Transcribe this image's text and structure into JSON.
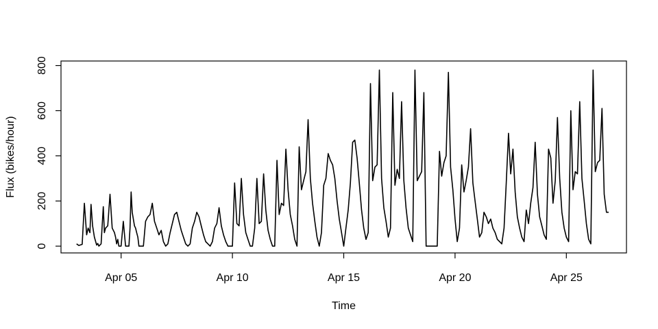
{
  "chart_data": {
    "type": "line",
    "xlabel": "Time",
    "ylabel": "Flux (bikes/hour)",
    "xlim": [
      2.3,
      27.7
    ],
    "ylim": [
      -30,
      820
    ],
    "x_ticks": [
      {
        "value": 5,
        "label": "Apr 05"
      },
      {
        "value": 10,
        "label": "Apr 10"
      },
      {
        "value": 15,
        "label": "Apr 15"
      },
      {
        "value": 20,
        "label": "Apr 20"
      },
      {
        "value": 25,
        "label": "Apr 25"
      }
    ],
    "y_ticks": [
      0,
      200,
      400,
      600,
      800
    ],
    "line_color": "#000000",
    "series": [
      {
        "x": [
          3.0,
          3.1,
          3.25,
          3.35,
          3.45,
          3.52,
          3.6,
          3.65,
          3.72,
          3.8,
          3.9,
          3.95,
          4.0,
          4.1,
          4.2,
          4.25,
          4.3,
          4.4,
          4.5,
          4.6,
          4.7,
          4.75,
          4.8,
          4.85,
          4.9,
          5.0,
          5.1,
          5.2,
          5.25,
          5.3,
          5.35,
          5.4,
          5.45,
          5.5,
          5.6,
          5.65,
          5.7,
          5.75,
          5.8,
          5.9,
          6.0,
          6.1,
          6.2,
          6.3,
          6.4,
          6.5,
          6.6,
          6.7,
          6.8,
          6.9,
          7.0,
          7.1,
          7.2,
          7.3,
          7.4,
          7.5,
          7.6,
          7.7,
          7.8,
          7.9,
          8.0,
          8.1,
          8.2,
          8.3,
          8.4,
          8.5,
          8.6,
          8.7,
          8.8,
          8.9,
          9.0,
          9.1,
          9.2,
          9.3,
          9.4,
          9.5,
          9.6,
          9.7,
          9.8,
          9.9,
          10.0,
          10.1,
          10.2,
          10.3,
          10.4,
          10.5,
          10.6,
          10.7,
          10.8,
          10.9,
          11.0,
          11.1,
          11.2,
          11.3,
          11.4,
          11.5,
          11.6,
          11.7,
          11.8,
          11.9,
          12.0,
          12.1,
          12.2,
          12.3,
          12.4,
          12.5,
          12.6,
          12.7,
          12.8,
          12.9,
          13.0,
          13.1,
          13.2,
          13.3,
          13.4,
          13.5,
          13.6,
          13.7,
          13.8,
          13.9,
          14.0,
          14.1,
          14.2,
          14.3,
          14.4,
          14.5,
          14.6,
          14.7,
          14.8,
          14.9,
          15.0,
          15.1,
          15.2,
          15.3,
          15.4,
          15.5,
          15.6,
          15.7,
          15.8,
          15.9,
          16.0,
          16.1,
          16.2,
          16.3,
          16.4,
          16.5,
          16.6,
          16.7,
          16.8,
          16.9,
          17.0,
          17.1,
          17.2,
          17.3,
          17.4,
          17.5,
          17.6,
          17.7,
          17.8,
          17.9,
          18.0,
          18.1,
          18.2,
          18.3,
          18.4,
          18.5,
          18.6,
          18.7,
          18.8,
          18.9,
          19.0,
          19.1,
          19.2,
          19.3,
          19.4,
          19.5,
          19.6,
          19.7,
          19.8,
          19.9,
          20.0,
          20.1,
          20.2,
          20.3,
          20.4,
          20.5,
          20.6,
          20.7,
          20.8,
          20.9,
          21.0,
          21.1,
          21.2,
          21.3,
          21.4,
          21.5,
          21.6,
          21.7,
          21.8,
          21.9,
          22.0,
          22.1,
          22.2,
          22.3,
          22.4,
          22.5,
          22.6,
          22.7,
          22.8,
          22.9,
          23.0,
          23.1,
          23.2,
          23.3,
          23.4,
          23.5,
          23.6,
          23.7,
          23.8,
          23.9,
          24.0,
          24.1,
          24.2,
          24.3,
          24.4,
          24.5,
          24.6,
          24.7,
          24.8,
          24.9,
          25.0,
          25.1,
          25.2,
          25.3,
          25.4,
          25.5,
          25.6,
          25.7,
          25.8,
          25.9,
          26.0,
          26.1,
          26.2,
          26.3,
          26.4,
          26.5,
          26.6,
          26.7,
          26.8,
          26.9
        ],
        "y": [
          10,
          3,
          8,
          190,
          50,
          80,
          60,
          185,
          90,
          40,
          5,
          12,
          0,
          10,
          175,
          60,
          80,
          90,
          230,
          80,
          60,
          40,
          10,
          30,
          0,
          0,
          110,
          0,
          0,
          0,
          0,
          80,
          240,
          150,
          90,
          80,
          60,
          40,
          0,
          0,
          0,
          110,
          130,
          140,
          190,
          110,
          80,
          50,
          70,
          20,
          0,
          10,
          60,
          100,
          140,
          150,
          110,
          70,
          40,
          10,
          0,
          10,
          80,
          110,
          150,
          130,
          90,
          50,
          20,
          10,
          0,
          20,
          80,
          100,
          170,
          90,
          50,
          20,
          0,
          0,
          0,
          280,
          100,
          90,
          300,
          140,
          60,
          30,
          0,
          0,
          80,
          300,
          100,
          110,
          320,
          160,
          70,
          30,
          0,
          0,
          380,
          140,
          190,
          180,
          430,
          250,
          140,
          90,
          30,
          0,
          440,
          250,
          290,
          330,
          560,
          300,
          190,
          110,
          40,
          0,
          60,
          270,
          300,
          410,
          380,
          360,
          300,
          200,
          120,
          60,
          0,
          80,
          160,
          280,
          460,
          470,
          390,
          280,
          160,
          80,
          30,
          60,
          720,
          290,
          350,
          360,
          780,
          300,
          170,
          110,
          40,
          80,
          680,
          270,
          340,
          300,
          640,
          290,
          170,
          80,
          50,
          20,
          780,
          290,
          310,
          330,
          680,
          0,
          0,
          0,
          0,
          0,
          0,
          420,
          310,
          370,
          400,
          770,
          350,
          250,
          120,
          20,
          80,
          360,
          240,
          290,
          350,
          520,
          280,
          200,
          120,
          40,
          60,
          150,
          130,
          100,
          120,
          80,
          60,
          30,
          20,
          10,
          80,
          280,
          500,
          320,
          430,
          240,
          130,
          80,
          40,
          20,
          160,
          100,
          190,
          260,
          460,
          230,
          130,
          90,
          50,
          30,
          430,
          390,
          190,
          290,
          570,
          300,
          150,
          80,
          40,
          20,
          600,
          250,
          330,
          320,
          640,
          300,
          200,
          100,
          30,
          10,
          780,
          330,
          370,
          380,
          610,
          230,
          150,
          150
        ]
      }
    ]
  }
}
